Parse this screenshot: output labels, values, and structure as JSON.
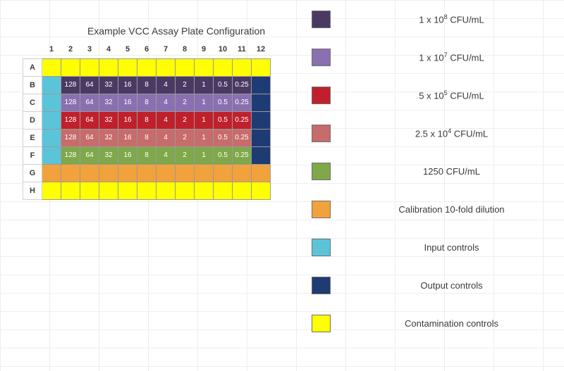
{
  "title": "Example VCC Assay Plate Configuration",
  "plate": {
    "cols": [
      "1",
      "2",
      "3",
      "4",
      "5",
      "6",
      "7",
      "8",
      "9",
      "10",
      "11",
      "12"
    ],
    "rows": [
      "A",
      "B",
      "C",
      "D",
      "E",
      "F",
      "G",
      "H"
    ],
    "dilution_values": [
      "128",
      "64",
      "32",
      "16",
      "8",
      "4",
      "2",
      "1",
      "0.5",
      "0.25"
    ],
    "colors": {
      "yellow": "#ffff00",
      "cyan": "#5bc4d9",
      "navy": "#1f3b73",
      "darkpurple": "#4a3a63",
      "lightpurple": "#8a70b0",
      "red": "#c0202c",
      "rose": "#c76b6b",
      "green": "#7fa84a",
      "orange": "#f2a23c"
    },
    "layout": [
      [
        "yellow",
        "yellow",
        "yellow",
        "yellow",
        "yellow",
        "yellow",
        "yellow",
        "yellow",
        "yellow",
        "yellow",
        "yellow",
        "yellow"
      ],
      [
        "cyan",
        "darkpurple",
        "darkpurple",
        "darkpurple",
        "darkpurple",
        "darkpurple",
        "darkpurple",
        "darkpurple",
        "darkpurple",
        "darkpurple",
        "darkpurple",
        "navy"
      ],
      [
        "cyan",
        "lightpurple",
        "lightpurple",
        "lightpurple",
        "lightpurple",
        "lightpurple",
        "lightpurple",
        "lightpurple",
        "lightpurple",
        "lightpurple",
        "lightpurple",
        "navy"
      ],
      [
        "cyan",
        "red",
        "red",
        "red",
        "red",
        "red",
        "red",
        "red",
        "red",
        "red",
        "red",
        "navy"
      ],
      [
        "cyan",
        "rose",
        "rose",
        "rose",
        "rose",
        "rose",
        "rose",
        "rose",
        "rose",
        "rose",
        "rose",
        "navy"
      ],
      [
        "cyan",
        "green",
        "green",
        "green",
        "green",
        "green",
        "green",
        "green",
        "green",
        "green",
        "green",
        "navy"
      ],
      [
        "orange",
        "orange",
        "orange",
        "orange",
        "orange",
        "orange",
        "orange",
        "orange",
        "orange",
        "orange",
        "orange",
        "orange"
      ],
      [
        "yellow",
        "yellow",
        "yellow",
        "yellow",
        "yellow",
        "yellow",
        "yellow",
        "yellow",
        "yellow",
        "yellow",
        "yellow",
        "yellow"
      ]
    ],
    "value_rows": [
      1,
      2,
      3,
      4,
      5
    ],
    "value_cols_start": 1,
    "value_cols_end": 10
  },
  "legend": [
    {
      "color": "darkpurple",
      "label_html": "1 x 10<sup>8</sup> CFU/mL"
    },
    {
      "color": "lightpurple",
      "label_html": "1 x 10<sup>7</sup> CFU/mL"
    },
    {
      "color": "red",
      "label_html": "5 x 10<sup>5</sup> CFU/mL"
    },
    {
      "color": "rose",
      "label_html": "2.5 x 10<sup>4</sup> CFU/mL"
    },
    {
      "color": "green",
      "label_html": "1250 CFU/mL"
    },
    {
      "color": "orange",
      "label_html": "Calibration 10-fold dilution"
    },
    {
      "color": "cyan",
      "label_html": "Input controls"
    },
    {
      "color": "navy",
      "label_html": "Output controls"
    },
    {
      "color": "yellow",
      "label_html": "Contamination controls"
    }
  ]
}
